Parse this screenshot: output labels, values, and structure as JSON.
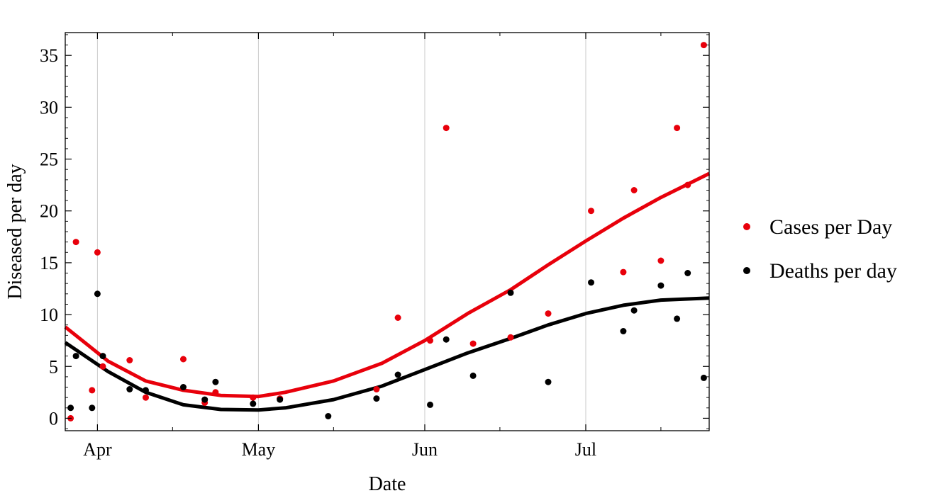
{
  "chart_data": {
    "type": "scatter",
    "title": "",
    "xlabel": "Date",
    "ylabel": "Diseased per day",
    "x_axis": {
      "kind": "date",
      "range": [
        "2020-03-26",
        "2020-07-24"
      ],
      "major_ticks": [
        {
          "date": "2020-04-01",
          "label": "Apr"
        },
        {
          "date": "2020-05-01",
          "label": "May"
        },
        {
          "date": "2020-06-01",
          "label": "Jun"
        },
        {
          "date": "2020-07-01",
          "label": "Jul"
        }
      ],
      "minor_ticks": [
        "2020-04-15",
        "2020-05-15",
        "2020-06-15",
        "2020-07-15"
      ]
    },
    "y_axis": {
      "range": [
        -1.2,
        37.2
      ],
      "ticks": [
        0,
        5,
        10,
        15,
        20,
        25,
        30,
        35
      ]
    },
    "grid": "vertical lines at month starts",
    "legend": {
      "placement": "right"
    },
    "series": [
      {
        "name": "Cases per Day",
        "color": "#e8000b",
        "points": [
          {
            "x": "2020-03-27",
            "y": 0
          },
          {
            "x": "2020-03-28",
            "y": 17
          },
          {
            "x": "2020-03-31",
            "y": 2.7
          },
          {
            "x": "2020-04-01",
            "y": 16
          },
          {
            "x": "2020-04-02",
            "y": 5
          },
          {
            "x": "2020-04-07",
            "y": 5.6
          },
          {
            "x": "2020-04-10",
            "y": 2
          },
          {
            "x": "2020-04-17",
            "y": 5.7
          },
          {
            "x": "2020-04-21",
            "y": 1.5
          },
          {
            "x": "2020-04-23",
            "y": 2.5
          },
          {
            "x": "2020-04-30",
            "y": 2
          },
          {
            "x": "2020-05-05",
            "y": 1.9
          },
          {
            "x": "2020-05-23",
            "y": 2.8
          },
          {
            "x": "2020-05-27",
            "y": 9.7
          },
          {
            "x": "2020-06-02",
            "y": 7.5
          },
          {
            "x": "2020-06-05",
            "y": 28
          },
          {
            "x": "2020-06-10",
            "y": 7.2
          },
          {
            "x": "2020-06-17",
            "y": 7.8
          },
          {
            "x": "2020-06-24",
            "y": 10.1
          },
          {
            "x": "2020-07-02",
            "y": 20
          },
          {
            "x": "2020-07-08",
            "y": 14.1
          },
          {
            "x": "2020-07-10",
            "y": 22
          },
          {
            "x": "2020-07-15",
            "y": 15.2
          },
          {
            "x": "2020-07-18",
            "y": 28
          },
          {
            "x": "2020-07-20",
            "y": 22.5
          },
          {
            "x": "2020-07-23",
            "y": 36
          }
        ],
        "trend": [
          {
            "x": "2020-03-26",
            "y": 8.8
          },
          {
            "x": "2020-04-03",
            "y": 5.5
          },
          {
            "x": "2020-04-10",
            "y": 3.6
          },
          {
            "x": "2020-04-17",
            "y": 2.7
          },
          {
            "x": "2020-04-24",
            "y": 2.2
          },
          {
            "x": "2020-05-01",
            "y": 2.1
          },
          {
            "x": "2020-05-06",
            "y": 2.5
          },
          {
            "x": "2020-05-15",
            "y": 3.6
          },
          {
            "x": "2020-05-24",
            "y": 5.3
          },
          {
            "x": "2020-06-01",
            "y": 7.5
          },
          {
            "x": "2020-06-09",
            "y": 10.1
          },
          {
            "x": "2020-06-17",
            "y": 12.4
          },
          {
            "x": "2020-06-24",
            "y": 14.8
          },
          {
            "x": "2020-07-01",
            "y": 17.1
          },
          {
            "x": "2020-07-08",
            "y": 19.3
          },
          {
            "x": "2020-07-15",
            "y": 21.3
          },
          {
            "x": "2020-07-24",
            "y": 23.6
          }
        ]
      },
      {
        "name": "Deaths per day",
        "color": "#000000",
        "points": [
          {
            "x": "2020-03-27",
            "y": 1
          },
          {
            "x": "2020-03-28",
            "y": 6
          },
          {
            "x": "2020-03-31",
            "y": 1
          },
          {
            "x": "2020-04-01",
            "y": 12
          },
          {
            "x": "2020-04-02",
            "y": 6
          },
          {
            "x": "2020-04-07",
            "y": 2.8
          },
          {
            "x": "2020-04-10",
            "y": 2.7
          },
          {
            "x": "2020-04-17",
            "y": 3
          },
          {
            "x": "2020-04-21",
            "y": 1.8
          },
          {
            "x": "2020-04-23",
            "y": 3.5
          },
          {
            "x": "2020-04-30",
            "y": 1.4
          },
          {
            "x": "2020-05-05",
            "y": 1.8
          },
          {
            "x": "2020-05-14",
            "y": 0.2
          },
          {
            "x": "2020-05-23",
            "y": 1.9
          },
          {
            "x": "2020-05-27",
            "y": 4.2
          },
          {
            "x": "2020-06-02",
            "y": 1.3
          },
          {
            "x": "2020-06-05",
            "y": 7.6
          },
          {
            "x": "2020-06-10",
            "y": 4.1
          },
          {
            "x": "2020-06-17",
            "y": 12.1
          },
          {
            "x": "2020-06-24",
            "y": 3.5
          },
          {
            "x": "2020-07-02",
            "y": 13.1
          },
          {
            "x": "2020-07-08",
            "y": 8.4
          },
          {
            "x": "2020-07-10",
            "y": 10.4
          },
          {
            "x": "2020-07-15",
            "y": 12.8
          },
          {
            "x": "2020-07-18",
            "y": 9.6
          },
          {
            "x": "2020-07-20",
            "y": 14
          },
          {
            "x": "2020-07-23",
            "y": 3.9
          }
        ],
        "trend": [
          {
            "x": "2020-03-26",
            "y": 7.3
          },
          {
            "x": "2020-04-03",
            "y": 4.5
          },
          {
            "x": "2020-04-10",
            "y": 2.5
          },
          {
            "x": "2020-04-17",
            "y": 1.3
          },
          {
            "x": "2020-04-24",
            "y": 0.85
          },
          {
            "x": "2020-05-01",
            "y": 0.8
          },
          {
            "x": "2020-05-06",
            "y": 1.0
          },
          {
            "x": "2020-05-15",
            "y": 1.8
          },
          {
            "x": "2020-05-24",
            "y": 3.1
          },
          {
            "x": "2020-06-01",
            "y": 4.7
          },
          {
            "x": "2020-06-09",
            "y": 6.3
          },
          {
            "x": "2020-06-17",
            "y": 7.7
          },
          {
            "x": "2020-06-24",
            "y": 9.0
          },
          {
            "x": "2020-07-01",
            "y": 10.1
          },
          {
            "x": "2020-07-08",
            "y": 10.9
          },
          {
            "x": "2020-07-15",
            "y": 11.4
          },
          {
            "x": "2020-07-24",
            "y": 11.6
          }
        ]
      }
    ]
  }
}
